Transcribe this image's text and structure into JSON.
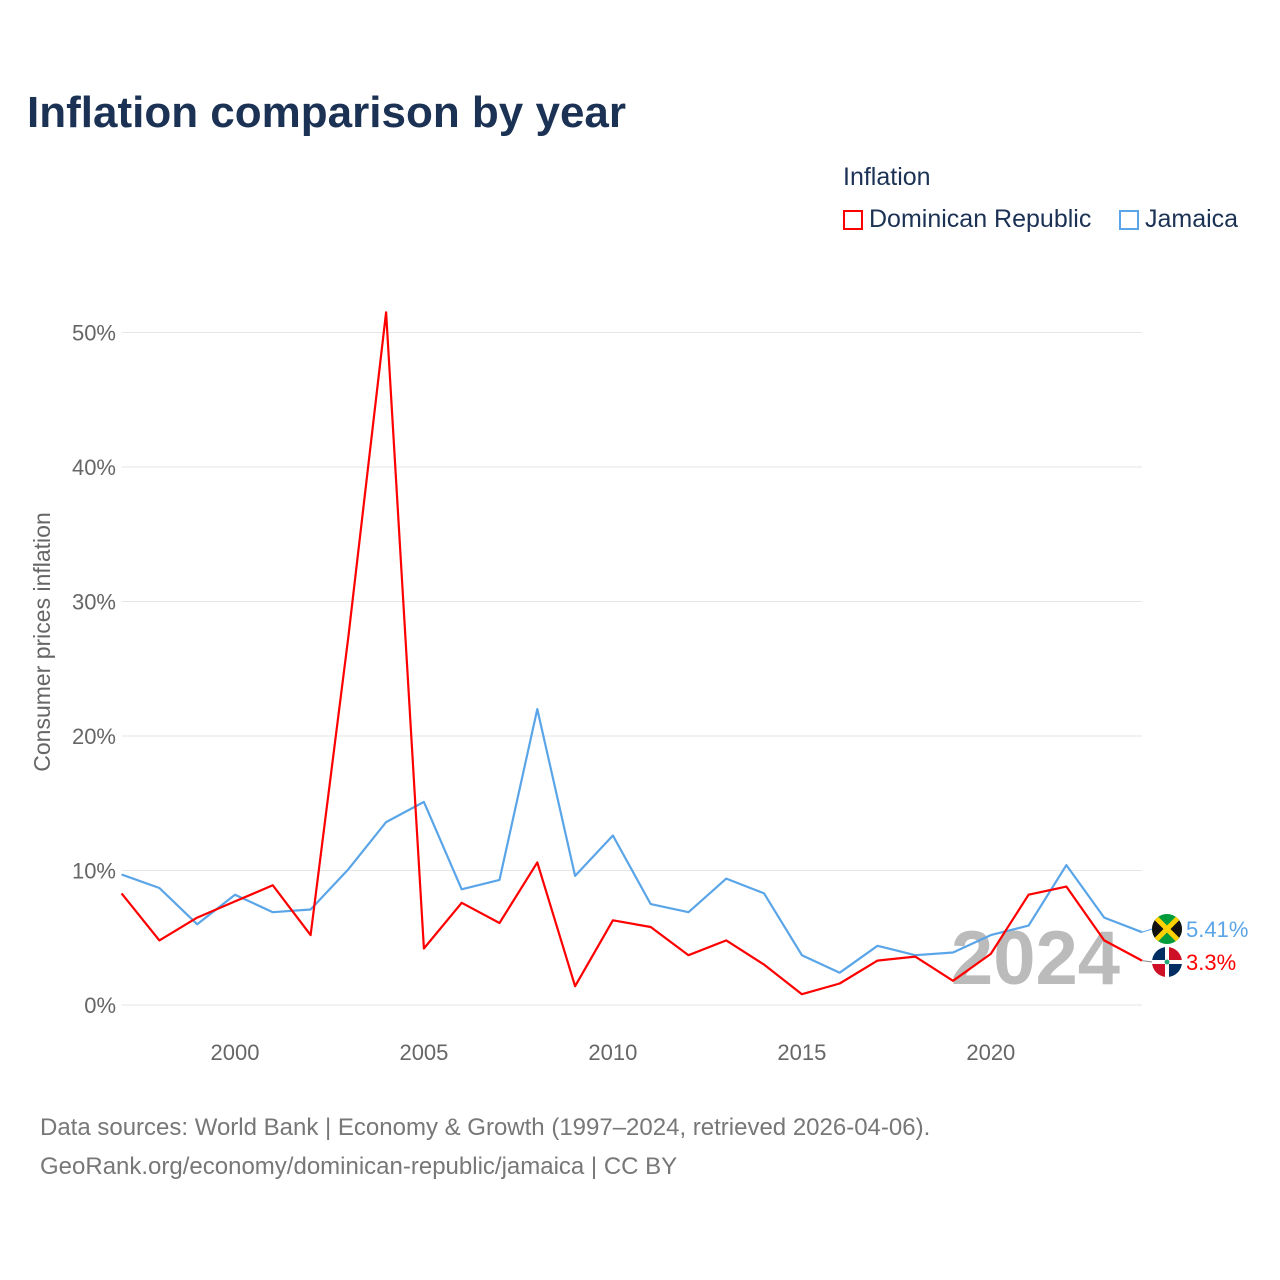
{
  "chart_data": {
    "type": "line",
    "title": "Inflation comparison by year",
    "legend_title": "Inflation",
    "legend_placement": "top-right",
    "xlabel": "",
    "ylabel": "Consumer prices inflation",
    "x": [
      1997,
      1998,
      1999,
      2000,
      2001,
      2002,
      2003,
      2004,
      2005,
      2006,
      2007,
      2008,
      2009,
      2010,
      2011,
      2012,
      2013,
      2014,
      2015,
      2016,
      2017,
      2018,
      2019,
      2020,
      2021,
      2022,
      2023,
      2024
    ],
    "xlim": [
      1997,
      2024
    ],
    "ylim": [
      0,
      52
    ],
    "x_ticks": [
      2000,
      2005,
      2010,
      2015,
      2020
    ],
    "y_ticks": [
      0,
      10,
      20,
      30,
      40,
      50
    ],
    "y_tick_labels": [
      "0%",
      "10%",
      "20%",
      "30%",
      "40%",
      "50%"
    ],
    "grid": true,
    "year_watermark": "2024",
    "series": [
      {
        "name": "Dominican Republic",
        "color": "#ff0000",
        "end_label": "3.3%",
        "values": [
          8.3,
          4.8,
          6.5,
          7.7,
          8.9,
          5.2,
          27.4,
          51.5,
          4.2,
          7.6,
          6.1,
          10.6,
          1.4,
          6.3,
          5.8,
          3.7,
          4.8,
          3.0,
          0.8,
          1.6,
          3.3,
          3.6,
          1.8,
          3.8,
          8.2,
          8.8,
          4.8,
          3.3
        ]
      },
      {
        "name": "Jamaica",
        "color": "#5aa5e8",
        "end_label": "5.41%",
        "values": [
          9.7,
          8.7,
          6.0,
          8.2,
          6.9,
          7.1,
          10.1,
          13.6,
          15.1,
          8.6,
          9.3,
          22.0,
          9.6,
          12.6,
          7.5,
          6.9,
          9.4,
          8.3,
          3.7,
          2.4,
          4.4,
          3.7,
          3.9,
          5.2,
          5.9,
          10.4,
          6.5,
          5.41
        ]
      }
    ]
  },
  "source": {
    "line1": "Data sources: World Bank | Economy & Growth (1997–2024, retrieved 2026-04-06).",
    "line2": "GeoRank.org/economy/dominican-republic/jamaica | CC BY"
  }
}
